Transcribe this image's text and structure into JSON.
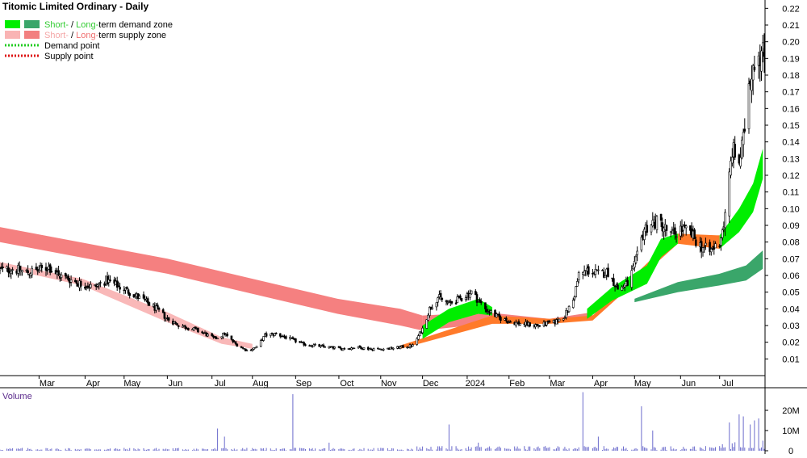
{
  "chart_data": {
    "type": "candlestick",
    "title": "Titomic Limited Ordinary - Daily",
    "legend": {
      "placement": "top-left",
      "items": [
        {
          "segments": [
            {
              "text": "Short-",
              "color": "#33cc33"
            },
            {
              "text": " / ",
              "color": "#000000"
            },
            {
              "text": "Long-",
              "color": "#33cc33"
            },
            {
              "text": "term demand zone",
              "color": "#000000"
            }
          ],
          "swatches": [
            "#00ee00",
            "#3aa66a"
          ],
          "style": "zone"
        },
        {
          "segments": [
            {
              "text": "Short-",
              "color": "#f4a6a6"
            },
            {
              "text": " / ",
              "color": "#000000"
            },
            {
              "text": "Long-",
              "color": "#f07070"
            },
            {
              "text": "term supply zone",
              "color": "#000000"
            }
          ],
          "swatches": [
            "#f9b4b4",
            "#f27f7f"
          ],
          "style": "zone"
        },
        {
          "segments": [
            {
              "text": "Demand point",
              "color": "#000000"
            }
          ],
          "swatches": [
            "#22cc22"
          ],
          "style": "dotted"
        },
        {
          "segments": [
            {
              "text": "Supply point",
              "color": "#000000"
            }
          ],
          "swatches": [
            "#dd1111"
          ],
          "style": "dotted"
        }
      ]
    },
    "y_axis": {
      "position": "right",
      "range": [
        0,
        0.225
      ],
      "ticks": [
        "0.01",
        "0.02",
        "0.03",
        "0.04",
        "0.05",
        "0.06",
        "0.07",
        "0.08",
        "0.09",
        "0.10",
        "0.11",
        "0.12",
        "0.13",
        "0.14",
        "0.15",
        "0.16",
        "0.17",
        "0.18",
        "0.19",
        "0.20",
        "0.21",
        "0.22"
      ]
    },
    "x_axis": {
      "range": [
        "2023-02-01",
        "2024-08-02"
      ],
      "ticks": [
        {
          "label": "Mar",
          "date": "2023-03-01"
        },
        {
          "label": "Apr",
          "date": "2023-04-03"
        },
        {
          "label": "May",
          "date": "2023-05-01"
        },
        {
          "label": "Jun",
          "date": "2023-06-01"
        },
        {
          "label": "Jul",
          "date": "2023-07-03"
        },
        {
          "label": "Aug",
          "date": "2023-08-01"
        },
        {
          "label": "Sep",
          "date": "2023-09-01"
        },
        {
          "label": "Oct",
          "date": "2023-10-02"
        },
        {
          "label": "Nov",
          "date": "2023-11-01"
        },
        {
          "label": "Dec",
          "date": "2023-12-01"
        },
        {
          "label": "2024",
          "date": "2024-01-02"
        },
        {
          "label": "Feb",
          "date": "2024-02-01"
        },
        {
          "label": "Mar",
          "date": "2024-03-01"
        },
        {
          "label": "Apr",
          "date": "2024-04-01"
        },
        {
          "label": "May",
          "date": "2024-05-01"
        },
        {
          "label": "Jun",
          "date": "2024-06-03"
        },
        {
          "label": "Jul",
          "date": "2024-07-01"
        }
      ]
    },
    "price_anchors": [
      [
        "2023-02-01",
        0.063
      ],
      [
        "2023-02-10",
        0.064
      ],
      [
        "2023-02-20",
        0.062
      ],
      [
        "2023-03-01",
        0.063
      ],
      [
        "2023-03-08",
        0.065
      ],
      [
        "2023-03-15",
        0.06
      ],
      [
        "2023-03-22",
        0.058
      ],
      [
        "2023-03-31",
        0.055
      ],
      [
        "2023-04-10",
        0.053
      ],
      [
        "2023-04-18",
        0.057
      ],
      [
        "2023-04-26",
        0.054
      ],
      [
        "2023-05-05",
        0.05
      ],
      [
        "2023-05-15",
        0.045
      ],
      [
        "2023-05-24",
        0.04
      ],
      [
        "2023-06-01",
        0.034
      ],
      [
        "2023-06-10",
        0.03
      ],
      [
        "2023-06-19",
        0.028
      ],
      [
        "2023-06-28",
        0.025
      ],
      [
        "2023-07-05",
        0.022
      ],
      [
        "2023-07-12",
        0.025
      ],
      [
        "2023-07-20",
        0.019
      ],
      [
        "2023-07-28",
        0.015
      ],
      [
        "2023-08-04",
        0.017
      ],
      [
        "2023-08-10",
        0.024
      ],
      [
        "2023-08-18",
        0.025
      ],
      [
        "2023-08-28",
        0.022
      ],
      [
        "2023-09-06",
        0.019
      ],
      [
        "2023-09-15",
        0.018
      ],
      [
        "2023-09-25",
        0.017
      ],
      [
        "2023-10-05",
        0.016
      ],
      [
        "2023-10-15",
        0.017
      ],
      [
        "2023-10-25",
        0.016
      ],
      [
        "2023-11-05",
        0.016
      ],
      [
        "2023-11-15",
        0.017
      ],
      [
        "2023-11-24",
        0.018
      ],
      [
        "2023-12-01",
        0.028
      ],
      [
        "2023-12-06",
        0.04
      ],
      [
        "2023-12-12",
        0.047
      ],
      [
        "2023-12-20",
        0.043
      ],
      [
        "2023-12-28",
        0.046
      ],
      [
        "2024-01-05",
        0.05
      ],
      [
        "2024-01-10",
        0.045
      ],
      [
        "2024-01-15",
        0.04
      ],
      [
        "2024-01-24",
        0.035
      ],
      [
        "2024-02-02",
        0.032
      ],
      [
        "2024-02-12",
        0.031
      ],
      [
        "2024-02-22",
        0.03
      ],
      [
        "2024-03-05",
        0.032
      ],
      [
        "2024-03-12",
        0.036
      ],
      [
        "2024-03-18",
        0.045
      ],
      [
        "2024-03-22",
        0.06
      ],
      [
        "2024-03-28",
        0.063
      ],
      [
        "2024-04-05",
        0.061
      ],
      [
        "2024-04-12",
        0.062
      ],
      [
        "2024-04-19",
        0.052
      ],
      [
        "2024-04-26",
        0.055
      ],
      [
        "2024-05-02",
        0.068
      ],
      [
        "2024-05-08",
        0.088
      ],
      [
        "2024-05-14",
        0.092
      ],
      [
        "2024-05-20",
        0.091
      ],
      [
        "2024-05-27",
        0.084
      ],
      [
        "2024-06-03",
        0.088
      ],
      [
        "2024-06-10",
        0.085
      ],
      [
        "2024-06-17",
        0.078
      ],
      [
        "2024-06-24",
        0.074
      ],
      [
        "2024-07-01",
        0.08
      ],
      [
        "2024-07-05",
        0.095
      ],
      [
        "2024-07-10",
        0.135
      ],
      [
        "2024-07-15",
        0.128
      ],
      [
        "2024-07-18",
        0.14
      ],
      [
        "2024-07-22",
        0.176
      ],
      [
        "2024-07-25",
        0.188
      ],
      [
        "2024-07-29",
        0.195
      ],
      [
        "2024-08-01",
        0.192
      ]
    ],
    "zones": {
      "long_supply_upper": [
        [
          "2023-02-01",
          0.089
        ],
        [
          "2023-06-01",
          0.07
        ],
        [
          "2023-08-01",
          0.058
        ],
        [
          "2023-10-01",
          0.046
        ],
        [
          "2023-11-15",
          0.04
        ],
        [
          "2023-12-01",
          0.036
        ]
      ],
      "long_supply_lower": [
        [
          "2023-02-01",
          0.08
        ],
        [
          "2023-06-01",
          0.061
        ],
        [
          "2023-08-01",
          0.049
        ],
        [
          "2023-10-01",
          0.037
        ],
        [
          "2023-11-15",
          0.03
        ],
        [
          "2023-12-01",
          0.027
        ]
      ],
      "long_crossover_upper": [
        [
          "2023-12-01",
          0.036
        ],
        [
          "2024-01-15",
          0.038
        ],
        [
          "2024-03-01",
          0.034
        ],
        [
          "2024-04-01",
          0.038
        ]
      ],
      "long_crossover_lower": [
        [
          "2023-12-01",
          0.027
        ],
        [
          "2024-01-15",
          0.031
        ],
        [
          "2024-03-01",
          0.032
        ],
        [
          "2024-04-01",
          0.035
        ]
      ],
      "long_demand_upper": [
        [
          "2024-05-01",
          0.046
        ],
        [
          "2024-06-01",
          0.056
        ],
        [
          "2024-07-01",
          0.061
        ],
        [
          "2024-07-20",
          0.066
        ],
        [
          "2024-08-01",
          0.075
        ]
      ],
      "long_demand_lower": [
        [
          "2024-05-01",
          0.044
        ],
        [
          "2024-06-01",
          0.05
        ],
        [
          "2024-07-01",
          0.054
        ],
        [
          "2024-07-20",
          0.057
        ],
        [
          "2024-08-01",
          0.064
        ]
      ],
      "short_supply_upper": [
        [
          "2023-02-01",
          0.068
        ],
        [
          "2023-04-01",
          0.058
        ],
        [
          "2023-06-01",
          0.038
        ],
        [
          "2023-07-10",
          0.023
        ],
        [
          "2023-08-01",
          0.019
        ]
      ],
      "short_supply_lower": [
        [
          "2023-02-01",
          0.065
        ],
        [
          "2023-04-01",
          0.054
        ],
        [
          "2023-06-01",
          0.032
        ],
        [
          "2023-07-10",
          0.019
        ],
        [
          "2023-08-01",
          0.016
        ]
      ],
      "short_demand_upper": [
        [
          "2023-12-01",
          0.03
        ],
        [
          "2023-12-20",
          0.04
        ],
        [
          "2024-01-10",
          0.046
        ],
        [
          "2024-01-20",
          0.041
        ]
      ],
      "short_demand_lower": [
        [
          "2023-12-01",
          0.022
        ],
        [
          "2023-12-20",
          0.032
        ],
        [
          "2024-01-10",
          0.037
        ],
        [
          "2024-01-20",
          0.036
        ]
      ],
      "short_demand2_upper": [
        [
          "2024-03-28",
          0.04
        ],
        [
          "2024-04-15",
          0.053
        ],
        [
          "2024-05-10",
          0.066
        ],
        [
          "2024-05-20",
          0.082
        ],
        [
          "2024-06-01",
          0.085
        ]
      ],
      "short_demand2_lower": [
        [
          "2024-03-28",
          0.034
        ],
        [
          "2024-04-15",
          0.045
        ],
        [
          "2024-05-10",
          0.055
        ],
        [
          "2024-05-20",
          0.071
        ],
        [
          "2024-06-01",
          0.079
        ]
      ],
      "short_demand3_upper": [
        [
          "2024-07-01",
          0.084
        ],
        [
          "2024-07-15",
          0.1
        ],
        [
          "2024-07-25",
          0.115
        ],
        [
          "2024-08-01",
          0.136
        ]
      ],
      "short_demand3_lower": [
        [
          "2024-07-01",
          0.076
        ],
        [
          "2024-07-15",
          0.086
        ],
        [
          "2024-07-25",
          0.098
        ],
        [
          "2024-08-01",
          0.118
        ]
      ],
      "orange_upper": [
        [
          "2023-11-15",
          0.018
        ],
        [
          "2024-01-20",
          0.036
        ],
        [
          "2024-03-01",
          0.034
        ],
        [
          "2024-04-01",
          0.036
        ],
        [
          "2024-06-01",
          0.085
        ],
        [
          "2024-07-01",
          0.084
        ]
      ],
      "orange_lower": [
        [
          "2023-11-15",
          0.016
        ],
        [
          "2024-01-20",
          0.031
        ],
        [
          "2024-03-01",
          0.031
        ],
        [
          "2024-04-01",
          0.033
        ],
        [
          "2024-06-01",
          0.079
        ],
        [
          "2024-07-01",
          0.076
        ]
      ]
    },
    "volume_panel": {
      "label": "Volume",
      "y_axis": {
        "ticks": [
          "0",
          "10M",
          "20M"
        ],
        "max": 28000000
      },
      "spikes": [
        [
          "2023-07-07",
          11000000
        ],
        [
          "2023-07-12",
          7000000
        ],
        [
          "2023-08-30",
          28000000
        ],
        [
          "2023-09-25",
          4000000
        ],
        [
          "2023-12-10",
          8000000
        ],
        [
          "2023-12-20",
          13000000
        ],
        [
          "2024-01-10",
          4000000
        ],
        [
          "2024-03-25",
          29000000
        ],
        [
          "2024-04-05",
          7000000
        ],
        [
          "2024-05-06",
          22000000
        ],
        [
          "2024-05-14",
          10000000
        ],
        [
          "2024-07-08",
          14000000
        ],
        [
          "2024-07-15",
          18000000
        ],
        [
          "2024-07-18",
          17000000
        ],
        [
          "2024-07-23",
          13000000
        ],
        [
          "2024-07-26",
          15000000
        ],
        [
          "2024-07-29",
          16000000
        ],
        [
          "2024-08-01",
          5000000
        ]
      ]
    },
    "colors": {
      "candle": "#000000",
      "long_supply": "#f58080",
      "short_supply": "#f9b8b8",
      "long_demand": "#3aa66a",
      "short_demand": "#00ee00",
      "crossover": "#ff7a2a",
      "volume_bar": "#6b6bcc",
      "volume_label": "#5b2b8c"
    }
  }
}
